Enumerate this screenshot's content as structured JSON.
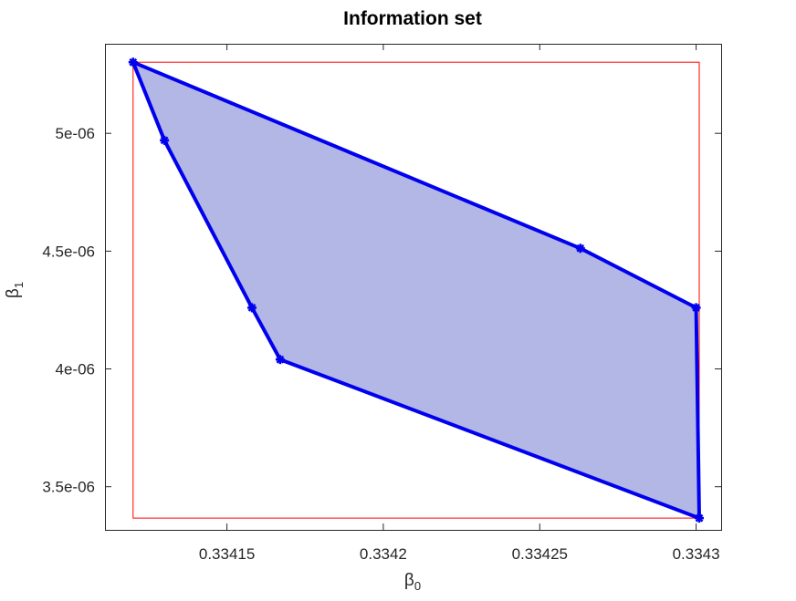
{
  "chart_data": {
    "type": "area",
    "title": "Information set",
    "xlabel": {
      "base": "β",
      "sub": "0"
    },
    "ylabel": {
      "base": "β",
      "sub": "1"
    },
    "xlim": [
      0.334111,
      0.334308
    ],
    "ylim": [
      3.317e-06,
      5.38e-06
    ],
    "x_ticks": [
      {
        "value": 0.33415,
        "label": "0.33415"
      },
      {
        "value": 0.3342,
        "label": "0.3342"
      },
      {
        "value": 0.33425,
        "label": "0.33425"
      },
      {
        "value": 0.3343,
        "label": "0.3343"
      }
    ],
    "y_ticks": [
      {
        "value": 3.5e-06,
        "label": "3.5e-06"
      },
      {
        "value": 4e-06,
        "label": "4e-06"
      },
      {
        "value": 4.5e-06,
        "label": "4.5e-06"
      },
      {
        "value": 5e-06,
        "label": "5e-06"
      }
    ],
    "grid": false,
    "bounding_box": {
      "x": [
        0.33412,
        0.334301
      ],
      "y": [
        3.367e-06,
        5.302e-06
      ],
      "color": "#ff0000"
    },
    "polygon": {
      "fill_color": "#b3b7e6",
      "edge_color": "#0000ee",
      "marker": "*",
      "vertices": [
        {
          "x": 0.33412,
          "y": 5.302e-06
        },
        {
          "x": 0.334263,
          "y": 4.512e-06
        },
        {
          "x": 0.3343,
          "y": 4.26e-06
        },
        {
          "x": 0.334301,
          "y": 3.367e-06
        },
        {
          "x": 0.334167,
          "y": 4.04e-06
        },
        {
          "x": 0.334158,
          "y": 4.26e-06
        },
        {
          "x": 0.33413,
          "y": 4.97e-06
        }
      ]
    }
  }
}
